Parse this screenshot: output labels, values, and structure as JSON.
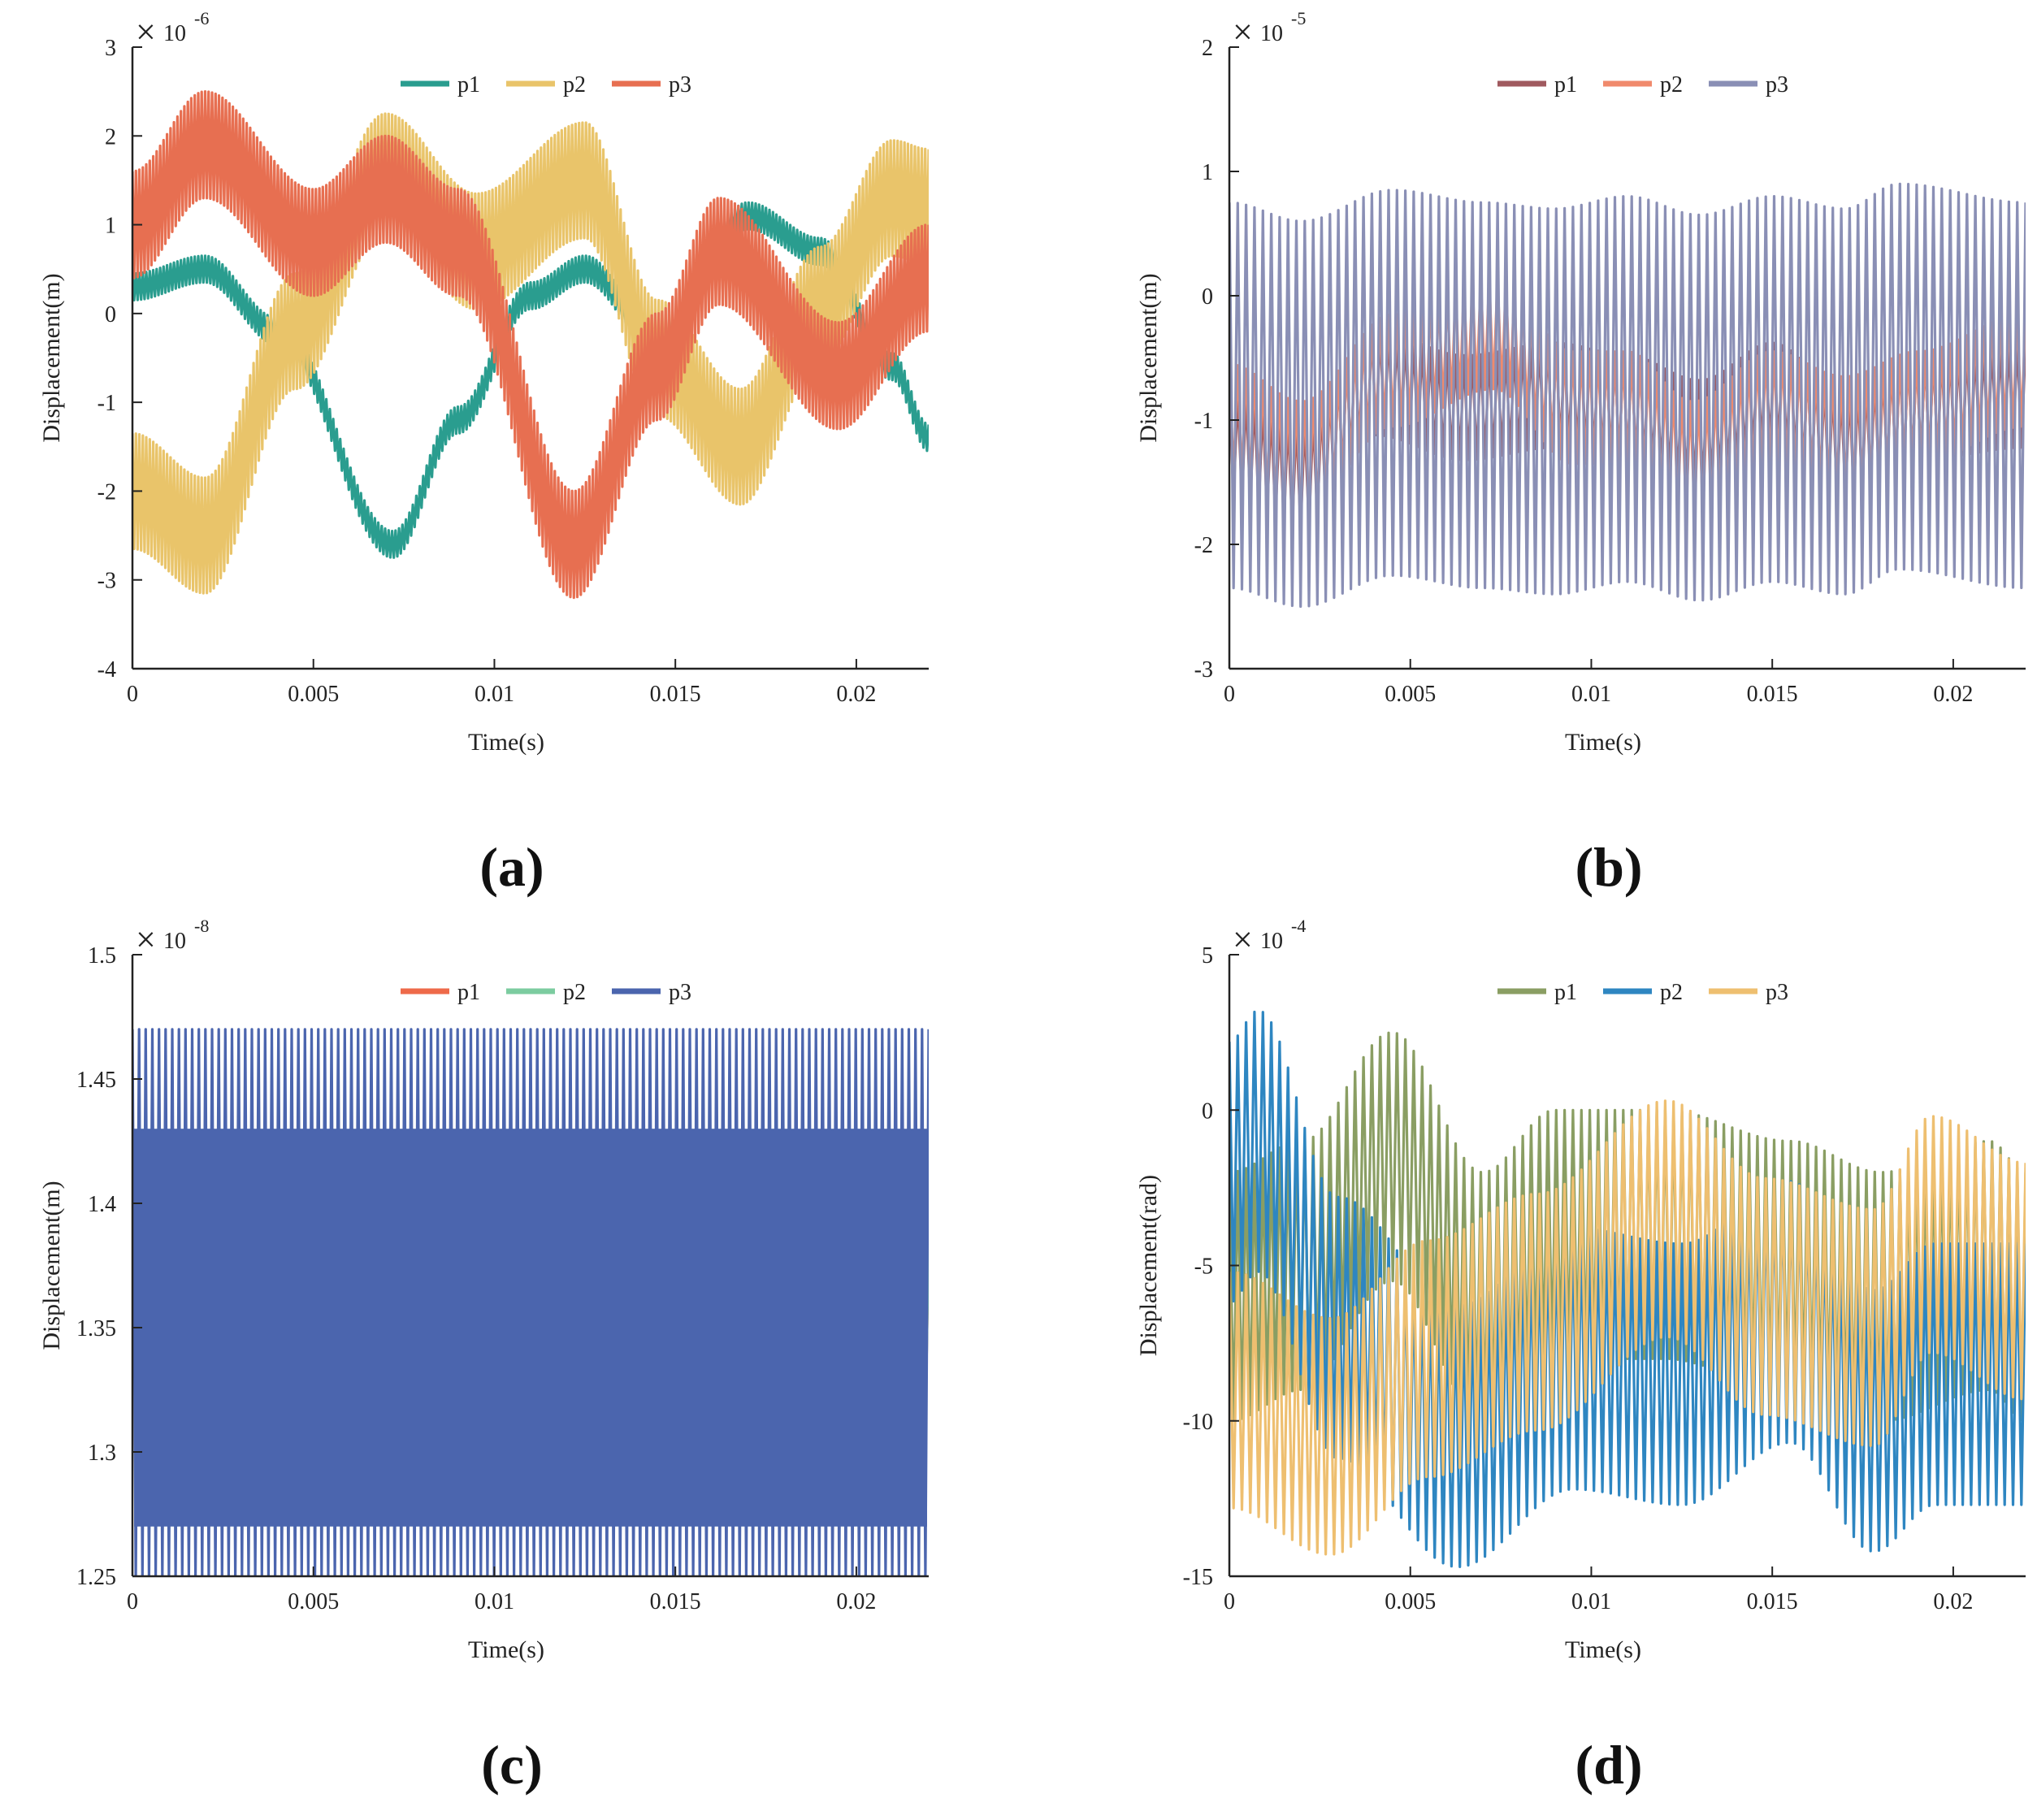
{
  "chart_data": [
    {
      "type": "line",
      "caption": "(a)",
      "xlabel": "Time(s)",
      "ylabel": "Displacement(m)",
      "exponent_label": "10",
      "exponent_power": "-6",
      "xlim": [
        0,
        0.022
      ],
      "ylim": [
        -4,
        3
      ],
      "x_ticks": [
        0,
        0.005,
        0.01,
        0.015,
        0.02
      ],
      "x_tick_labels": [
        "0",
        "0.005",
        "0.01",
        "0.015",
        "0.02"
      ],
      "y_ticks": [
        -4,
        -3,
        -2,
        -1,
        0,
        1,
        2,
        3
      ],
      "y_tick_labels": [
        "-4",
        "-3",
        "-2",
        "-1",
        "0",
        "1",
        "2",
        "3"
      ],
      "legend_position": "top-center",
      "series": [
        {
          "name": "p1",
          "color": "#2a9d8f",
          "band_half_width": 0.15,
          "carrier_cycles": 230,
          "envelope_x": [
            0,
            0.002,
            0.004,
            0.0072,
            0.009,
            0.011,
            0.0125,
            0.0145,
            0.017,
            0.019,
            0.021,
            0.022
          ],
          "envelope_y": [
            0.3,
            0.5,
            -0.2,
            -2.6,
            -1.2,
            0.2,
            0.5,
            -0.3,
            1.1,
            0.7,
            -0.6,
            -1.4
          ]
        },
        {
          "name": "p2",
          "color": "#e9c46a",
          "band_half_width": 0.65,
          "carrier_cycles": 230,
          "envelope_x": [
            0,
            0.002,
            0.0045,
            0.007,
            0.0095,
            0.0125,
            0.0145,
            0.0168,
            0.019,
            0.021,
            0.022
          ],
          "envelope_y": [
            -2.0,
            -2.5,
            -0.2,
            1.6,
            0.7,
            1.5,
            -0.5,
            -1.5,
            0.1,
            1.3,
            1.2
          ]
        },
        {
          "name": "p3",
          "color": "#e76f51",
          "band_half_width": 0.6,
          "carrier_cycles": 230,
          "envelope_x": [
            0,
            0.002,
            0.005,
            0.007,
            0.009,
            0.0122,
            0.0145,
            0.0162,
            0.0195,
            0.022
          ],
          "envelope_y": [
            1.0,
            1.9,
            0.8,
            1.4,
            0.8,
            -2.6,
            -0.6,
            0.7,
            -0.7,
            0.4
          ]
        }
      ]
    },
    {
      "type": "line",
      "caption": "(b)",
      "xlabel": "Time(s)",
      "ylabel": "Displacement(m)",
      "exponent_label": "10",
      "exponent_power": "-5",
      "xlim": [
        0,
        0.022
      ],
      "ylim": [
        -3,
        2
      ],
      "x_ticks": [
        0,
        0.005,
        0.01,
        0.015,
        0.02
      ],
      "x_tick_labels": [
        "0",
        "0.005",
        "0.01",
        "0.015",
        "0.02"
      ],
      "y_ticks": [
        -3,
        -2,
        -1,
        0,
        1,
        2
      ],
      "y_tick_labels": [
        "-3",
        "-2",
        "-1",
        "0",
        "1",
        "2"
      ],
      "legend_position": "top-center",
      "series": [
        {
          "name": "p1",
          "color": "#a05a5f",
          "band_half_width": 0.42,
          "carrier_cycles": 95,
          "envelope_x": [
            0,
            0.002,
            0.004,
            0.0065,
            0.009,
            0.011,
            0.013,
            0.015,
            0.017,
            0.019,
            0.022
          ],
          "envelope_y": [
            -1.2,
            -1.45,
            -0.7,
            -0.9,
            -0.8,
            -0.9,
            -1.1,
            -0.8,
            -1.2,
            -0.9,
            -0.8
          ]
        },
        {
          "name": "p2",
          "color": "#f08a6c",
          "band_half_width": 0.45,
          "carrier_cycles": 95,
          "envelope_x": [
            0,
            0.002,
            0.0045,
            0.0073,
            0.0095,
            0.011,
            0.0128,
            0.015,
            0.017,
            0.019,
            0.022
          ],
          "envelope_y": [
            -1.0,
            -1.3,
            -0.6,
            -0.3,
            -0.9,
            -0.9,
            -1.3,
            -0.9,
            -1.1,
            -0.9,
            -0.6
          ]
        },
        {
          "name": "p3",
          "color": "#8a8fb5",
          "band_half_width": 1.55,
          "carrier_cycles": 95,
          "envelope_x": [
            0,
            0.002,
            0.0045,
            0.007,
            0.009,
            0.011,
            0.013,
            0.015,
            0.017,
            0.0185,
            0.022
          ],
          "envelope_y": [
            -0.8,
            -0.95,
            -0.7,
            -0.8,
            -0.85,
            -0.75,
            -0.9,
            -0.75,
            -0.85,
            -0.65,
            -0.8
          ]
        }
      ]
    },
    {
      "type": "line",
      "caption": "(c)",
      "xlabel": "Time(s)",
      "ylabel": "Displacement(m)",
      "exponent_label": "10",
      "exponent_power": "-8",
      "xlim": [
        0,
        0.022
      ],
      "ylim": [
        1.25,
        1.5
      ],
      "x_ticks": [
        0,
        0.005,
        0.01,
        0.015,
        0.02
      ],
      "x_tick_labels": [
        "0",
        "0.005",
        "0.01",
        "0.015",
        "0.02"
      ],
      "y_ticks": [
        1.25,
        1.3,
        1.35,
        1.4,
        1.45,
        1.5
      ],
      "y_tick_labels": [
        "1.25",
        "1.3",
        "1.35",
        "1.4",
        "1.45",
        "1.5"
      ],
      "legend_position": "top-center",
      "series": [
        {
          "name": "p1",
          "color": "#ee6a4a",
          "band_half_width": 0.04,
          "carrier_cycles": 120,
          "envelope_x": [
            0,
            0.022
          ],
          "envelope_y": [
            1.35,
            1.35
          ]
        },
        {
          "name": "p2",
          "color": "#7ccca0",
          "band_half_width": 0.04,
          "carrier_cycles": 120,
          "envelope_x": [
            0,
            0.022
          ],
          "envelope_y": [
            1.35,
            1.35
          ]
        },
        {
          "name": "p3",
          "color": "#4b65ae",
          "band_half_width": 0.11,
          "carrier_cycles": 120,
          "inner_band": [
            1.27,
            1.43
          ],
          "envelope_x": [
            0,
            0.022
          ],
          "envelope_y": [
            1.36,
            1.36
          ]
        }
      ]
    },
    {
      "type": "line",
      "caption": "(d)",
      "xlabel": "Time(s)",
      "ylabel": "Displacement(rad)",
      "exponent_label": "10",
      "exponent_power": "-4",
      "xlim": [
        0,
        0.022
      ],
      "ylim": [
        -15,
        5
      ],
      "x_ticks": [
        0,
        0.005,
        0.01,
        0.015,
        0.02
      ],
      "x_tick_labels": [
        "0",
        "0.005",
        "0.01",
        "0.015",
        "0.02"
      ],
      "y_ticks": [
        -15,
        -10,
        -5,
        0,
        5
      ],
      "y_tick_labels": [
        "-15",
        "-10",
        "-5",
        "0",
        "5"
      ],
      "legend_position": "top-center",
      "series": [
        {
          "name": "p1",
          "color": "#8a9e63",
          "band_half_width": 4.0,
          "carrier_cycles": 95,
          "envelope_x": [
            0,
            0.002,
            0.0045,
            0.007,
            0.009,
            0.012,
            0.0155,
            0.018,
            0.021,
            0.022
          ],
          "envelope_y": [
            -6,
            -5,
            -1.5,
            -6,
            -4,
            -4,
            -5,
            -6,
            -5,
            -6
          ]
        },
        {
          "name": "p2",
          "color": "#2e86c1",
          "band_half_width": 4.2,
          "carrier_cycles": 95,
          "envelope_x": [
            0,
            0.0008,
            0.003,
            0.0063,
            0.0095,
            0.0125,
            0.0155,
            0.0178,
            0.0195,
            0.022
          ],
          "envelope_y": [
            -2,
            -1,
            -7,
            -10.5,
            -8,
            -8.5,
            -6.5,
            -10,
            -8.5,
            -8.5
          ]
        },
        {
          "name": "p3",
          "color": "#eebf70",
          "band_half_width": 3.8,
          "carrier_cycles": 95,
          "envelope_x": [
            0,
            0.0028,
            0.0055,
            0.0085,
            0.0121,
            0.0148,
            0.0178,
            0.0194,
            0.022
          ],
          "envelope_y": [
            -9,
            -10.5,
            -8,
            -6.5,
            -3.5,
            -6,
            -7,
            -4,
            -5.5
          ]
        }
      ]
    }
  ]
}
